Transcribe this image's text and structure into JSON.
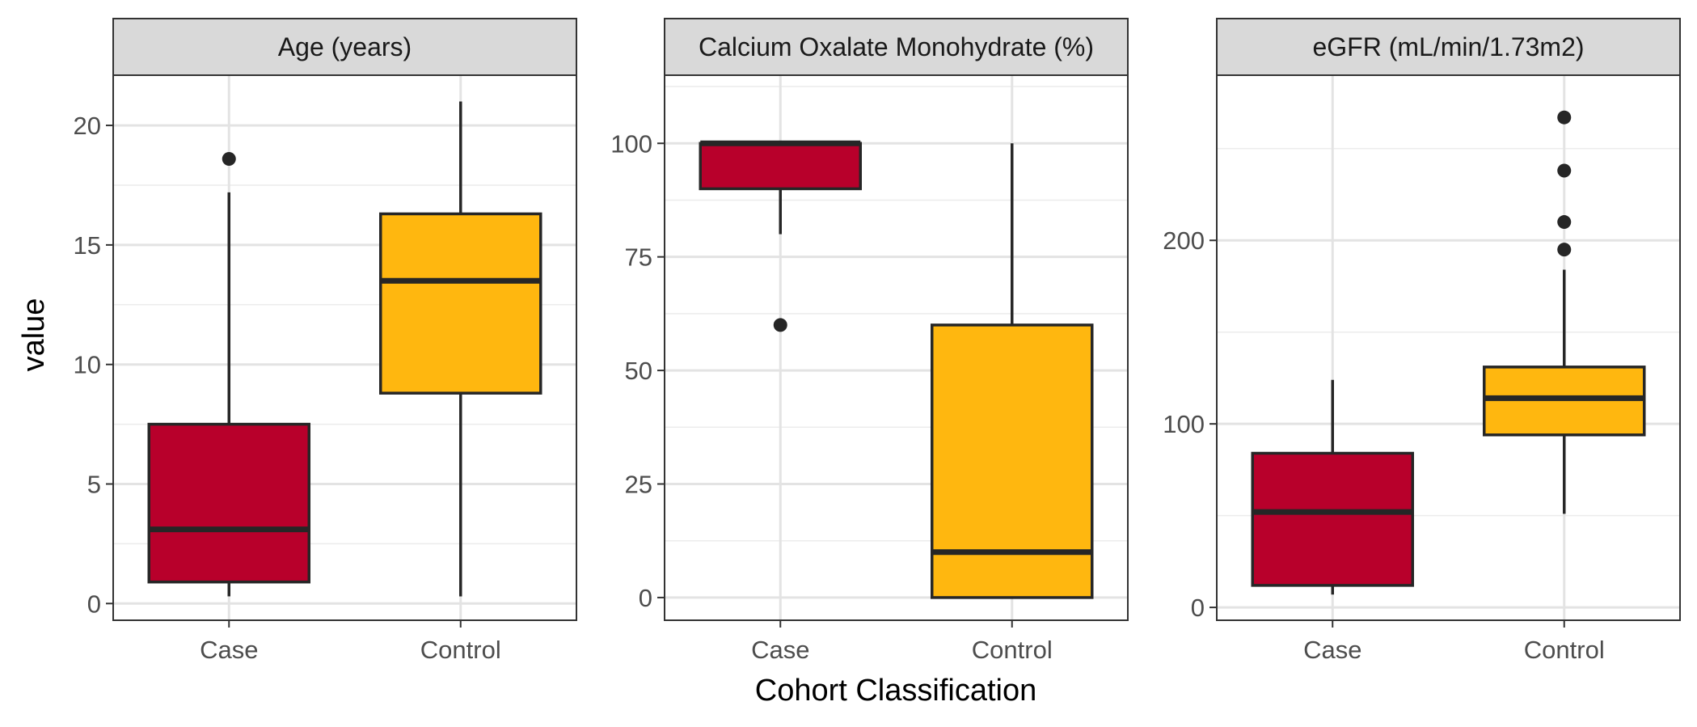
{
  "figure": {
    "ylabel": "value",
    "xlabel": "Cohort Classification"
  },
  "chart_data": [
    {
      "type": "box",
      "title": "Age (years)",
      "categories": [
        "Case",
        "Control"
      ],
      "ylim": [
        -0.7,
        22.1
      ],
      "yticks": [
        0,
        5,
        10,
        15,
        20
      ],
      "grid": true,
      "boxes": [
        {
          "category": "Case",
          "color": "#B8002B",
          "q1": 0.9,
          "median": 3.1,
          "q3": 7.5,
          "whisker_low": 0.3,
          "whisker_high": 17.2,
          "outliers": [
            18.6
          ]
        },
        {
          "category": "Control",
          "color": "#FFB70F",
          "q1": 8.8,
          "median": 13.5,
          "q3": 16.3,
          "whisker_low": 0.3,
          "whisker_high": 21.0,
          "outliers": []
        }
      ]
    },
    {
      "type": "box",
      "title": "Calcium Oxalate Monohydrate (%)",
      "categories": [
        "Case",
        "Control"
      ],
      "ylim": [
        -5,
        115
      ],
      "yticks": [
        0,
        25,
        50,
        75,
        100
      ],
      "grid": true,
      "boxes": [
        {
          "category": "Case",
          "color": "#B8002B",
          "q1": 90,
          "median": 100,
          "q3": 100,
          "whisker_low": 80,
          "whisker_high": 100,
          "outliers": [
            60
          ]
        },
        {
          "category": "Control",
          "color": "#FFB70F",
          "q1": 0,
          "median": 10,
          "q3": 60,
          "whisker_low": 0,
          "whisker_high": 100,
          "outliers": []
        }
      ]
    },
    {
      "type": "box",
      "title": "eGFR (mL/min/1.73m2)",
      "categories": [
        "Case",
        "Control"
      ],
      "ylim": [
        -7,
        290
      ],
      "yticks": [
        0,
        100,
        200
      ],
      "grid": true,
      "boxes": [
        {
          "category": "Case",
          "color": "#B8002B",
          "q1": 12,
          "median": 52,
          "q3": 84,
          "whisker_low": 7,
          "whisker_high": 124,
          "outliers": []
        },
        {
          "category": "Control",
          "color": "#FFB70F",
          "q1": 94,
          "median": 114,
          "q3": 131,
          "whisker_low": 51,
          "whisker_high": 184,
          "outliers": [
            195,
            210,
            238,
            267
          ]
        }
      ]
    }
  ]
}
